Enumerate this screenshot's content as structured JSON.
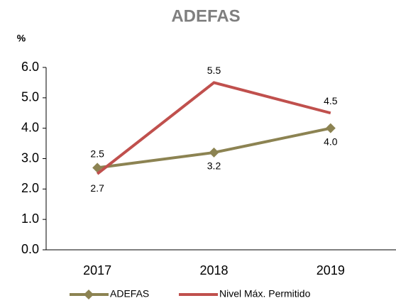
{
  "chart_data": {
    "type": "line",
    "title": "ADEFAS",
    "y_label": "%",
    "categories": [
      "2017",
      "2018",
      "2019"
    ],
    "series": [
      {
        "name": "ADEFAS",
        "color": "#8c8352",
        "marker": "diamond",
        "values": [
          2.7,
          3.2,
          4.0
        ],
        "value_labels": [
          "2.7",
          "3.2",
          "4.0"
        ]
      },
      {
        "name": "Nivel Máx. Permitido",
        "color": "#c0504d",
        "values": [
          2.5,
          5.5,
          4.5
        ],
        "value_labels": [
          "2.5",
          "5.5",
          "4.5"
        ]
      }
    ],
    "ylim": [
      0,
      6
    ],
    "yticks": [
      {
        "value": 0,
        "label": "0.0"
      },
      {
        "value": 1,
        "label": "1.0"
      },
      {
        "value": 2,
        "label": "2.0"
      },
      {
        "value": 3,
        "label": "3.0"
      },
      {
        "value": 4,
        "label": "4.0"
      },
      {
        "value": 5,
        "label": "5.0"
      },
      {
        "value": 6,
        "label": "6.0"
      }
    ],
    "grid": false,
    "legend": "bottom"
  }
}
